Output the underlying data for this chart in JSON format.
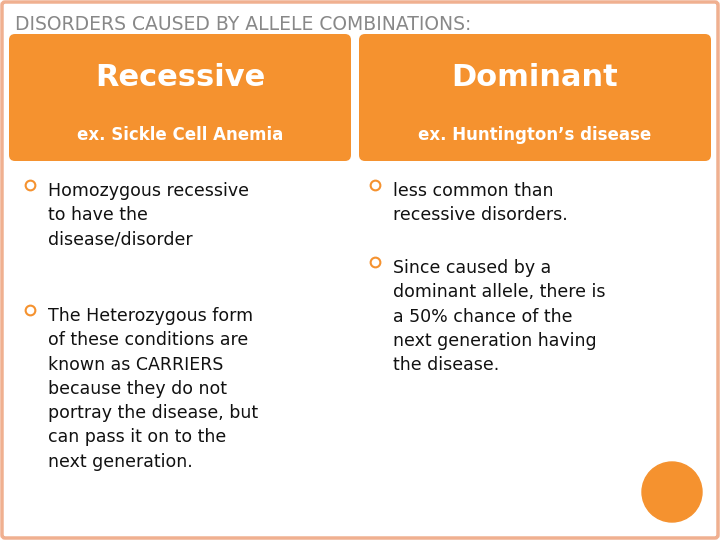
{
  "title": "DISORDERS CAUSED BY ALLELE COMBINATIONS:",
  "title_color": "#888888",
  "background_color": "#FFFFFF",
  "border_color": "#F0B090",
  "orange_color": "#F5922F",
  "header1": "Recessive",
  "header2": "Dominant",
  "sub1": "ex. Sickle Cell Anemia",
  "sub2": "ex. Huntington’s disease",
  "left_bullets": [
    "Homozygous recessive\nto have the\ndisease/disorder",
    "The Heterozygous form\nof these conditions are\nknown as CARRIERS\nbecause they do not\nportray the disease, but\ncan pass it on to the\nnext generation."
  ],
  "right_bullets": [
    "less common than\nrecessive disorders.",
    "Since caused by a\ndominant allele, there is\na 50% chance of the\nnext generation having\nthe disease."
  ],
  "bullet_color": "#F5922F",
  "text_color": "#111111",
  "font_size_title": 13.5,
  "font_size_header": 22,
  "font_size_sub": 12,
  "font_size_body": 12.5
}
